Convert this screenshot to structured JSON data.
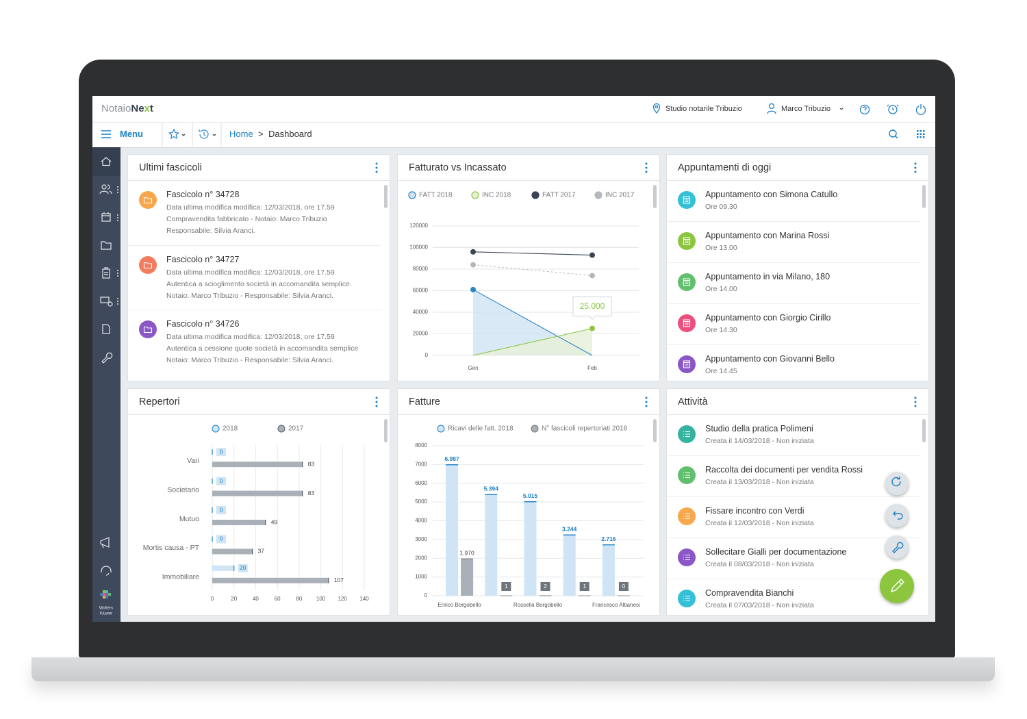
{
  "header": {
    "logo": [
      "Notaio",
      "Ne",
      "x",
      "t"
    ],
    "studio": "Studio notarile Tribuzio",
    "user": "Marco Tribuzio"
  },
  "nav": {
    "menu": "Menu",
    "breadcrumb": [
      "Home",
      ">",
      "Dashboard"
    ]
  },
  "sidebar": {
    "brand": [
      "Wolters",
      "Kluwer"
    ]
  },
  "panels": {
    "fascicoli": {
      "title": "Ultimi fascicoli",
      "items": [
        {
          "title": "Fascicolo n° 34728",
          "color": "#f7a84c",
          "lines": [
            "Data ultima modifica modifica: 12/03/2018, ore 17.59",
            "Compravendita fabbricato - Notaio: Marco Tribuzio",
            "Responsabile: Silvia Aranci."
          ]
        },
        {
          "title": "Fascicolo n° 34727",
          "color": "#f47c5e",
          "lines": [
            "Data ultima modifica modifica: 12/03/2018, ore 17.59",
            "Autentica a scioglimento società in accomandita semplice.",
            "Notaio: Marco Tribuzio - Responsabile: Silvia Aranci."
          ]
        },
        {
          "title": "Fascicolo n° 34726",
          "color": "#8b57c6",
          "lines": [
            "Data ultima modifica modifica: 12/03/2018, ore 17.59",
            "Autentica a cessione quote società in accomandita semplice",
            "Notaio: Marco Tribuzio - Responsabile: Silvia Aranci."
          ]
        }
      ]
    },
    "appuntamenti": {
      "title": "Appuntamenti di oggi",
      "items": [
        {
          "title": "Appuntamento con Simona Catullo",
          "subtitle": "Ore 09.30",
          "color": "#35c0d8"
        },
        {
          "title": "Appuntamento con Marina Rossi",
          "subtitle": "Ore 13.00",
          "color": "#8cc63f"
        },
        {
          "title": "Appuntamento in via Milano, 180",
          "subtitle": "Ore 14.00",
          "color": "#62bf6e"
        },
        {
          "title": "Appuntamento con Giorgio Cirillo",
          "subtitle": "Ore 14.30",
          "color": "#ec4f7d"
        },
        {
          "title": "Appuntamento con Giovanni Bello",
          "subtitle": "Ore 14.45",
          "color": "#8b57c6"
        }
      ]
    },
    "attivita": {
      "title": "Attività",
      "items": [
        {
          "title": "Studio della pratica Polimeni",
          "subtitle": "Creata il 14/03/2018 - Non iniziata",
          "color": "#33b3a0"
        },
        {
          "title": "Raccolta dei documenti per vendita Rossi",
          "subtitle": "Creata il 13/03/2018 - Non iniziata",
          "color": "#62bf6e"
        },
        {
          "title": "Fissare incontro con Verdi",
          "subtitle": "Creata il 12/03/2018 - Non iniziata",
          "color": "#f7a84c"
        },
        {
          "title": "Sollecitare Gialli per documentazione",
          "subtitle": "Creata il 08/03/2018 - Non iniziata",
          "color": "#8b57c6"
        },
        {
          "title": "Compravendita Bianchi",
          "subtitle": "Creata il 07/03/2018 - Non iniziata",
          "color": "#35c0d8"
        }
      ]
    }
  },
  "chart_data": [
    {
      "type": "line",
      "title": "Fatturato vs Incassato",
      "categories": [
        "Gen",
        "Feb"
      ],
      "series": [
        {
          "name": "FATT 2018",
          "color": "#2a85c7",
          "area": true,
          "fill": "#cfe3f3",
          "values": [
            61000,
            0
          ]
        },
        {
          "name": "INC 2018",
          "color": "#8cc63f",
          "area": true,
          "fill": "#e6f0d8",
          "values": [
            0,
            25000
          ],
          "value_labels": [
            null,
            "25.000"
          ]
        },
        {
          "name": "FATT 2017",
          "color": "#3b4452",
          "values": [
            96000,
            93000
          ]
        },
        {
          "name": "INC 2017",
          "color": "#b4b8be",
          "dashed": true,
          "values": [
            84000,
            74000
          ]
        }
      ],
      "ylim": [
        0,
        120000
      ],
      "yticks": [
        0,
        20000,
        40000,
        60000,
        80000,
        100000,
        120000
      ],
      "grid": true
    },
    {
      "type": "barh",
      "title": "Repertori",
      "categories": [
        "Vari",
        "Societario",
        "Mutuo",
        "Mortis causa - PT",
        "Immobiliare"
      ],
      "series": [
        {
          "name": "2018",
          "color": "#cfe4f5",
          "edge": "#1a80c4",
          "values": [
            0,
            0,
            0,
            0,
            20
          ]
        },
        {
          "name": "2017",
          "color": "#aab0b8",
          "edge": "#555c66",
          "values": [
            83,
            83,
            49,
            37,
            107
          ]
        }
      ],
      "xlim": [
        0,
        140
      ],
      "xticks": [
        0,
        20,
        40,
        60,
        80,
        100,
        120,
        140
      ],
      "grid": true
    },
    {
      "type": "bar",
      "title": "Fatture",
      "categories": [
        "Enrico Borgobello",
        null,
        "Rossella Borgobello",
        null,
        "Francesco Albanesi"
      ],
      "series": [
        {
          "name": "Ricavi delle fatt. 2018",
          "color": "#cfe4f5",
          "edge": "#1a80c4",
          "values": [
            6987,
            5394,
            5015,
            3244,
            2716
          ],
          "value_labels": [
            "6.987",
            "5.394",
            "5.015",
            "3.244",
            "2.716"
          ]
        },
        {
          "name": "N° fascicoli repertoriati 2018",
          "color": "#aab0b8",
          "edge": "#6f757d",
          "values": [
            1970,
            1,
            2,
            1,
            0
          ],
          "value_labels": [
            "1.970",
            "1",
            "2",
            "1",
            "0"
          ]
        }
      ],
      "ylim": [
        0,
        8000
      ],
      "yticks": [
        0,
        1000,
        2000,
        3000,
        4000,
        5000,
        6000,
        7000,
        8000
      ],
      "grid": true
    }
  ]
}
